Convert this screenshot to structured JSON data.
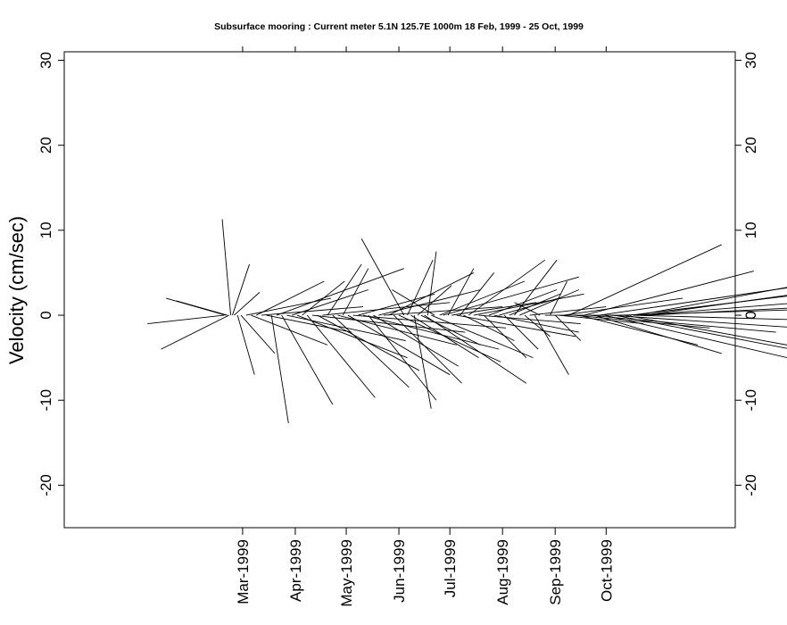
{
  "chart_data": {
    "type": "stick-vector",
    "title": "Subsurface mooring : Current meter  5.1N 125.7E   1000m  18 Feb, 1999 - 25 Oct, 1999",
    "xlabel": "",
    "ylabel": "Velocity (cm/sec)",
    "ylim": [
      -25,
      31
    ],
    "yticks": [
      -20,
      -10,
      0,
      10,
      20,
      30
    ],
    "xlim": [
      "1998-11-16",
      "1999-12-16"
    ],
    "xticks": [
      {
        "date": "1999-03-01",
        "label": "Mar-1999"
      },
      {
        "date": "1999-04-01",
        "label": "Apr-1999"
      },
      {
        "date": "1999-05-01",
        "label": "May-1999"
      },
      {
        "date": "1999-06-01",
        "label": "Jun-1999"
      },
      {
        "date": "1999-07-01",
        "label": "Jul-1999"
      },
      {
        "date": "1999-08-01",
        "label": "Aug-1999"
      },
      {
        "date": "1999-09-01",
        "label": "Sep-1999"
      },
      {
        "date": "1999-10-01",
        "label": "Oct-1999"
      }
    ],
    "grid": false,
    "series": [
      {
        "stick_origin_y": 0,
        "sticks": [
          {
            "date": "1999-02-18",
            "u": -9.0,
            "v": -1.0
          },
          {
            "date": "1999-02-19",
            "u": -7.0,
            "v": 2.0
          },
          {
            "date": "1999-02-20",
            "u": -6.0,
            "v": 1.7
          },
          {
            "date": "1999-02-21",
            "u": -8.0,
            "v": -4.0
          },
          {
            "date": "1999-02-22",
            "u": -1.0,
            "v": 11.3
          },
          {
            "date": "1999-02-23",
            "u": 2.0,
            "v": 6.0
          },
          {
            "date": "1999-02-24",
            "u": 3.0,
            "v": 2.7
          },
          {
            "date": "1999-02-26",
            "u": 2.0,
            "v": -7.0
          },
          {
            "date": "1999-02-28",
            "u": 4.0,
            "v": -4.5
          },
          {
            "date": "1999-03-03",
            "u": 10.0,
            "v": 2.0
          },
          {
            "date": "1999-03-06",
            "u": 9.0,
            "v": -3.5
          },
          {
            "date": "1999-03-09",
            "u": 8.0,
            "v": 4.0
          },
          {
            "date": "1999-03-12",
            "u": 12.0,
            "v": 1.0
          },
          {
            "date": "1999-03-15",
            "u": 10.0,
            "v": -2.0
          },
          {
            "date": "1999-03-18",
            "u": 2.0,
            "v": -12.7
          },
          {
            "date": "1999-03-21",
            "u": 15.0,
            "v": 5.5
          },
          {
            "date": "1999-03-24",
            "u": 6.0,
            "v": -10.5
          },
          {
            "date": "1999-03-27",
            "u": 14.0,
            "v": -3.0
          },
          {
            "date": "1999-03-30",
            "u": 9.0,
            "v": 3.0
          },
          {
            "date": "1999-04-02",
            "u": 13.0,
            "v": -5.0
          },
          {
            "date": "1999-04-05",
            "u": 5.0,
            "v": 4.0
          },
          {
            "date": "1999-04-08",
            "u": 8.0,
            "v": -9.7
          },
          {
            "date": "1999-04-11",
            "u": 18.0,
            "v": -2.0
          },
          {
            "date": "1999-04-14",
            "u": 12.0,
            "v": -6.5
          },
          {
            "date": "1999-04-17",
            "u": 15.0,
            "v": 1.5
          },
          {
            "date": "1999-04-20",
            "u": 4.0,
            "v": 6.0
          },
          {
            "date": "1999-04-23",
            "u": 9.0,
            "v": -8.5
          },
          {
            "date": "1999-04-26",
            "u": 14.0,
            "v": -3.5
          },
          {
            "date": "1999-04-29",
            "u": 3.0,
            "v": 5.5
          },
          {
            "date": "1999-05-02",
            "u": 12.0,
            "v": -7.0
          },
          {
            "date": "1999-05-05",
            "u": 18.0,
            "v": -1.5
          },
          {
            "date": "1999-05-08",
            "u": 9.0,
            "v": 2.5
          },
          {
            "date": "1999-05-11",
            "u": 16.0,
            "v": -4.0
          },
          {
            "date": "1999-05-14",
            "u": 8.0,
            "v": -10.0
          },
          {
            "date": "1999-05-17",
            "u": 10.0,
            "v": -6.0
          },
          {
            "date": "1999-05-20",
            "u": 12.0,
            "v": 3.0
          },
          {
            "date": "1999-05-23",
            "u": 14.0,
            "v": 1.0
          },
          {
            "date": "1999-05-26",
            "u": 10.0,
            "v": 5.0
          },
          {
            "date": "1999-05-29",
            "u": 8.0,
            "v": -8.0
          },
          {
            "date": "1999-06-01",
            "u": 12.0,
            "v": -5.5
          },
          {
            "date": "1999-06-04",
            "u": -5.0,
            "v": 9.0
          },
          {
            "date": "1999-06-06",
            "u": 3.0,
            "v": 6.5
          },
          {
            "date": "1999-06-08",
            "u": 8.0,
            "v": -5.0
          },
          {
            "date": "1999-06-10",
            "u": 2.0,
            "v": -11.0
          },
          {
            "date": "1999-06-12",
            "u": 4.0,
            "v": 3.5
          },
          {
            "date": "1999-06-14",
            "u": 7.0,
            "v": -3.5
          },
          {
            "date": "1999-06-16",
            "u": 12.0,
            "v": -8.0
          },
          {
            "date": "1999-06-18",
            "u": 1.0,
            "v": 7.5
          },
          {
            "date": "1999-06-20",
            "u": 12.0,
            "v": -5.0
          },
          {
            "date": "1999-06-22",
            "u": -5.0,
            "v": 3.0
          },
          {
            "date": "1999-06-25",
            "u": 10.0,
            "v": 4.0
          },
          {
            "date": "1999-06-27",
            "u": 16.0,
            "v": 4.5
          },
          {
            "date": "1999-06-30",
            "u": 3.0,
            "v": 5.5
          },
          {
            "date": "1999-07-02",
            "u": 10.0,
            "v": 1.5
          },
          {
            "date": "1999-07-05",
            "u": 14.0,
            "v": -2.5
          },
          {
            "date": "1999-07-07",
            "u": 4.0,
            "v": 5.0
          },
          {
            "date": "1999-07-09",
            "u": 6.0,
            "v": -3.0
          },
          {
            "date": "1999-07-12",
            "u": 9.0,
            "v": 6.5
          },
          {
            "date": "1999-07-15",
            "u": 13.0,
            "v": 2.5
          },
          {
            "date": "1999-07-18",
            "u": 12.0,
            "v": -1.0
          },
          {
            "date": "1999-07-21",
            "u": 5.0,
            "v": -5.0
          },
          {
            "date": "1999-07-24",
            "u": 8.0,
            "v": 3.0
          },
          {
            "date": "1999-07-27",
            "u": 10.0,
            "v": -2.0
          },
          {
            "date": "1999-07-30",
            "u": 7.0,
            "v": 2.0
          },
          {
            "date": "1999-08-02",
            "u": 4.0,
            "v": -4.0
          },
          {
            "date": "1999-08-05",
            "u": 6.0,
            "v": 2.5
          },
          {
            "date": "1999-08-08",
            "u": 5.0,
            "v": 6.5
          },
          {
            "date": "1999-08-11",
            "u": 7.0,
            "v": 3.0
          },
          {
            "date": "1999-08-14",
            "u": 3.0,
            "v": -2.5
          },
          {
            "date": "1999-08-17",
            "u": 9.0,
            "v": 1.0
          },
          {
            "date": "1999-08-20",
            "u": 4.0,
            "v": -7.0
          },
          {
            "date": "1999-08-23",
            "u": -3.0,
            "v": 1.5
          },
          {
            "date": "1999-08-26",
            "u": 9.0,
            "v": 0.0
          },
          {
            "date": "1999-08-29",
            "u": 2.0,
            "v": 4.0
          },
          {
            "date": "1999-09-01",
            "u": 3.0,
            "v": -3.0
          },
          {
            "date": "1999-09-03",
            "u": 10.0,
            "v": -1.0
          },
          {
            "date": "1999-09-06",
            "u": 14.0,
            "v": 2.0
          },
          {
            "date": "1999-09-09",
            "u": 18.0,
            "v": 8.3
          },
          {
            "date": "1999-09-12",
            "u": 16.0,
            "v": -1.5
          },
          {
            "date": "1999-09-15",
            "u": 14.0,
            "v": -3.5
          },
          {
            "date": "1999-09-18",
            "u": 20.0,
            "v": 5.2
          },
          {
            "date": "1999-09-21",
            "u": 22.0,
            "v": -2.0
          },
          {
            "date": "1999-09-24",
            "u": 15.0,
            "v": -4.5
          },
          {
            "date": "1999-09-27",
            "u": 24.0,
            "v": 3.5
          },
          {
            "date": "1999-09-30",
            "u": 28.0,
            "v": -6.5
          },
          {
            "date": "1999-10-03",
            "u": 30.0,
            "v": -2.0
          },
          {
            "date": "1999-10-06",
            "u": 26.0,
            "v": -5.0
          },
          {
            "date": "1999-10-09",
            "u": 32.0,
            "v": 1.0
          },
          {
            "date": "1999-10-12",
            "u": 30.0,
            "v": -5.5
          },
          {
            "date": "1999-10-15",
            "u": 33.0,
            "v": 4.0
          },
          {
            "date": "1999-10-17",
            "u": 36.0,
            "v": -1.0
          },
          {
            "date": "1999-10-19",
            "u": 34.0,
            "v": 6.3
          },
          {
            "date": "1999-10-21",
            "u": 38.0,
            "v": 3.0
          },
          {
            "date": "1999-10-23",
            "u": 36.0,
            "v": 5.0
          },
          {
            "date": "1999-10-25",
            "u": 40.0,
            "v": 2.0
          }
        ]
      }
    ]
  }
}
